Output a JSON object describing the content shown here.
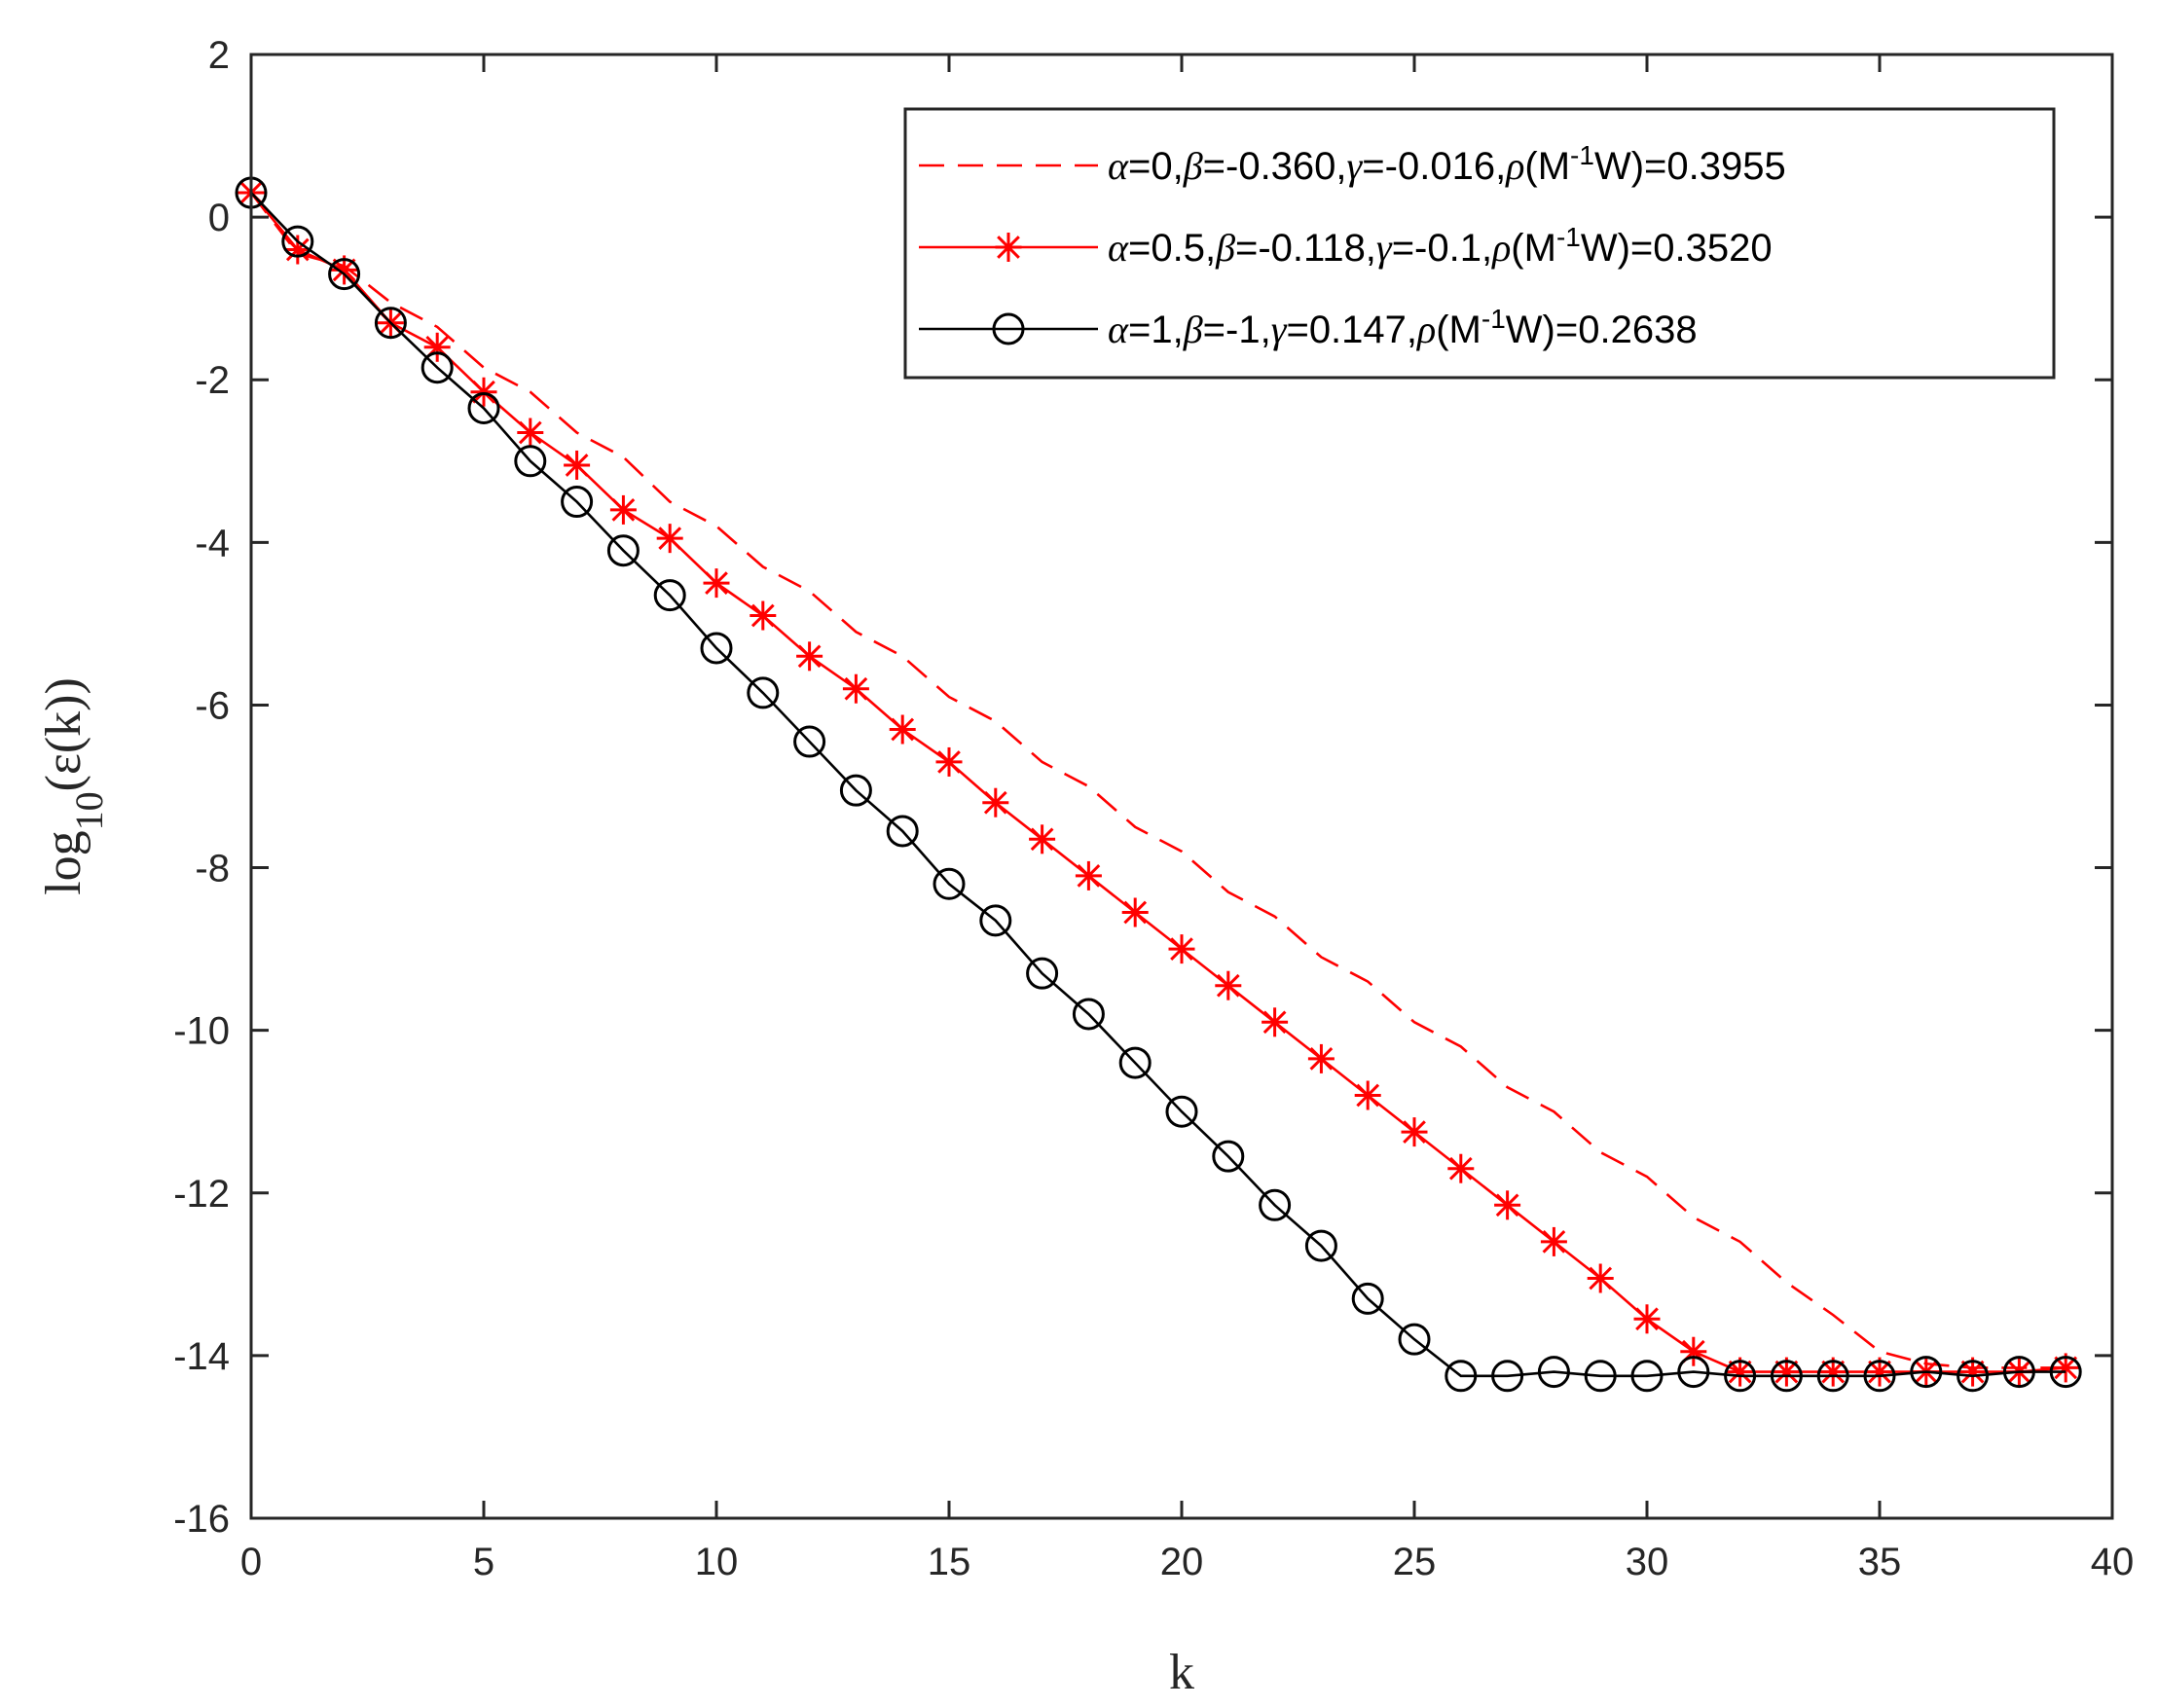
{
  "chart_data": {
    "type": "line",
    "title": "",
    "xlabel": "k",
    "ylabel": "log10(ε(k))",
    "xlim": [
      0,
      40
    ],
    "ylim": [
      -16,
      2
    ],
    "xticks": [
      0,
      5,
      10,
      15,
      20,
      25,
      30,
      35,
      40
    ],
    "yticks": [
      2,
      0,
      -2,
      -4,
      -6,
      -8,
      -10,
      -12,
      -14,
      -16
    ],
    "xtick_labels": [
      "0",
      "5",
      "10",
      "15",
      "20",
      "25",
      "30",
      "35",
      "40"
    ],
    "ytick_labels": [
      "2",
      "0",
      "-2",
      "-4",
      "-6",
      "-8",
      "-10",
      "-12",
      "-14",
      "-16"
    ],
    "grid": false,
    "legend_position": "top-right",
    "series": [
      {
        "name": "α=0,β=-0.360,γ=-0.016,ρ(M-1W)=0.3955",
        "legend": {
          "alpha": "0",
          "beta": "-0.360",
          "gamma": "-0.016",
          "rho": "0.3955"
        },
        "color": "#ff0000",
        "line_style": "dashed",
        "marker": "none",
        "x": [
          0,
          1,
          2,
          3,
          4,
          5,
          6,
          7,
          8,
          9,
          10,
          11,
          12,
          13,
          14,
          15,
          16,
          17,
          18,
          19,
          20,
          21,
          22,
          23,
          24,
          25,
          26,
          27,
          28,
          29,
          30,
          31,
          32,
          33,
          34,
          35,
          36,
          37,
          38,
          39
        ],
        "values": [
          0.3,
          -0.45,
          -0.6,
          -1.05,
          -1.35,
          -1.85,
          -2.15,
          -2.65,
          -2.95,
          -3.5,
          -3.8,
          -4.3,
          -4.6,
          -5.1,
          -5.4,
          -5.9,
          -6.2,
          -6.7,
          -7.0,
          -7.5,
          -7.8,
          -8.3,
          -8.6,
          -9.1,
          -9.4,
          -9.9,
          -10.2,
          -10.7,
          -11.0,
          -11.5,
          -11.8,
          -12.3,
          -12.6,
          -13.1,
          -13.5,
          -13.95,
          -14.1,
          -14.15,
          -14.15,
          -14.15
        ]
      },
      {
        "name": "α=0.5,β=-0.118,γ=-0.1,ρ(M-1W)=0.3520",
        "legend": {
          "alpha": "0.5",
          "beta": "-0.118",
          "gamma": "-0.1",
          "rho": "0.3520"
        },
        "color": "#ff0000",
        "line_style": "solid",
        "marker": "asterisk",
        "x": [
          0,
          1,
          2,
          3,
          4,
          5,
          6,
          7,
          8,
          9,
          10,
          11,
          12,
          13,
          14,
          15,
          16,
          17,
          18,
          19,
          20,
          21,
          22,
          23,
          24,
          25,
          26,
          27,
          28,
          29,
          30,
          31,
          32,
          33,
          34,
          35,
          36,
          37,
          38,
          39
        ],
        "values": [
          0.3,
          -0.4,
          -0.65,
          -1.3,
          -1.6,
          -2.15,
          -2.65,
          -3.05,
          -3.6,
          -3.95,
          -4.5,
          -4.9,
          -5.4,
          -5.8,
          -6.3,
          -6.7,
          -7.2,
          -7.65,
          -8.1,
          -8.55,
          -9.0,
          -9.45,
          -9.9,
          -10.35,
          -10.8,
          -11.25,
          -11.7,
          -12.15,
          -12.6,
          -13.05,
          -13.55,
          -13.95,
          -14.2,
          -14.2,
          -14.2,
          -14.2,
          -14.2,
          -14.2,
          -14.2,
          -14.15
        ]
      },
      {
        "name": "α=1,β=-1,γ=0.147,ρ(M-1W)=0.2638",
        "legend": {
          "alpha": "1",
          "beta": "-1",
          "gamma": "0.147",
          "rho": "0.2638"
        },
        "color": "#000000",
        "line_style": "solid",
        "marker": "circle",
        "x": [
          0,
          1,
          2,
          3,
          4,
          5,
          6,
          7,
          8,
          9,
          10,
          11,
          12,
          13,
          14,
          15,
          16,
          17,
          18,
          19,
          20,
          21,
          22,
          23,
          24,
          25,
          26,
          27,
          28,
          29,
          30,
          31,
          32,
          33,
          34,
          35,
          36,
          37,
          38,
          39
        ],
        "values": [
          0.3,
          -0.3,
          -0.7,
          -1.3,
          -1.85,
          -2.35,
          -3.0,
          -3.5,
          -4.1,
          -4.65,
          -5.3,
          -5.85,
          -6.45,
          -7.05,
          -7.55,
          -8.2,
          -8.65,
          -9.3,
          -9.8,
          -10.4,
          -11.0,
          -11.55,
          -12.15,
          -12.65,
          -13.3,
          -13.8,
          -14.25,
          -14.25,
          -14.2,
          -14.25,
          -14.25,
          -14.2,
          -14.25,
          -14.25,
          -14.25,
          -14.25,
          -14.2,
          -14.25,
          -14.2,
          -14.2
        ]
      }
    ]
  }
}
